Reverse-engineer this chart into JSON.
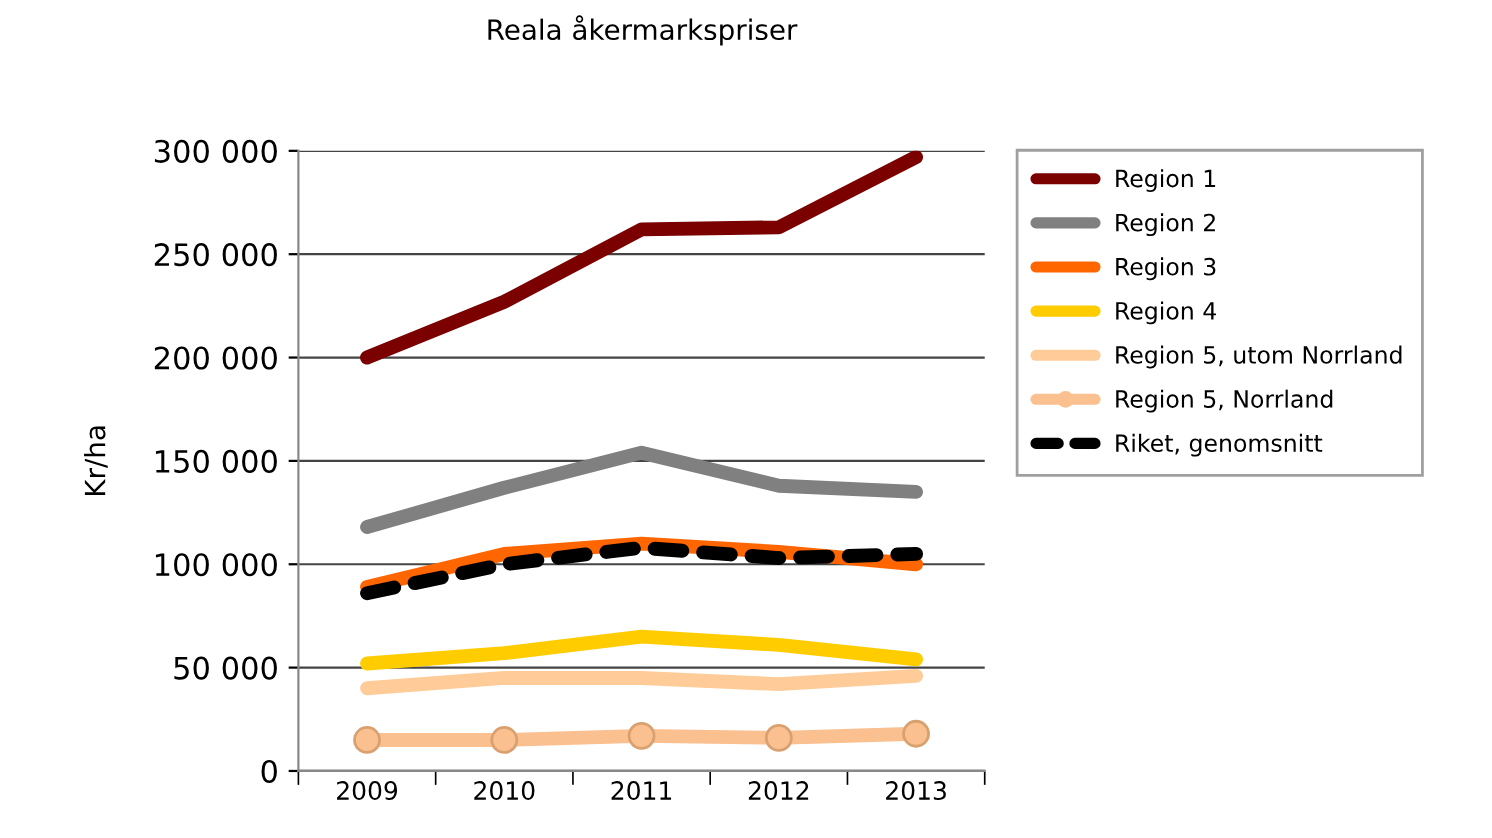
{
  "chart_data": {
    "type": "line",
    "title": "Reala åkermarkspriser",
    "ylabel": "Kr/ha",
    "categories": [
      "2009",
      "2010",
      "2011",
      "2012",
      "2013"
    ],
    "series": [
      {
        "name": "Region 1",
        "color": "#7b0000",
        "values": [
          200000,
          227000,
          262000,
          263000,
          297000
        ]
      },
      {
        "name": "Region 2",
        "color": "#808080",
        "values": [
          118000,
          137000,
          154000,
          138000,
          135000
        ]
      },
      {
        "name": "Region 3",
        "color": "#ff6600",
        "values": [
          89000,
          105000,
          110000,
          106000,
          100000
        ]
      },
      {
        "name": "Region 4",
        "color": "#ffcc00",
        "values": [
          52000,
          57000,
          65000,
          61000,
          54000
        ]
      },
      {
        "name": "Region 5, utom Norrland",
        "color": "#ffcc99",
        "values": [
          40000,
          45000,
          45000,
          42000,
          46000
        ]
      },
      {
        "name": "Region 5, Norrland",
        "color": "#fac090",
        "marker": "circle",
        "values": [
          15000,
          15000,
          17000,
          16000,
          18000
        ]
      },
      {
        "name": "Riket, genomsnitt",
        "color": "#000000",
        "line_style": "dashed",
        "values": [
          86000,
          100000,
          108000,
          103000,
          105000
        ]
      }
    ],
    "ylim": [
      0,
      300000
    ],
    "yticks": [
      0,
      {
        "value": 50000,
        "label": "50 000"
      },
      {
        "value": 100000,
        "label": "100 000"
      },
      {
        "value": 150000,
        "label": "150 000"
      },
      {
        "value": 200000,
        "label": "200 000"
      },
      {
        "value": 250000,
        "label": "250 000"
      },
      {
        "value": 300000,
        "label": "300 000"
      }
    ],
    "grid": "y",
    "legend": "right",
    "marker": "none",
    "line_style": "solid"
  }
}
